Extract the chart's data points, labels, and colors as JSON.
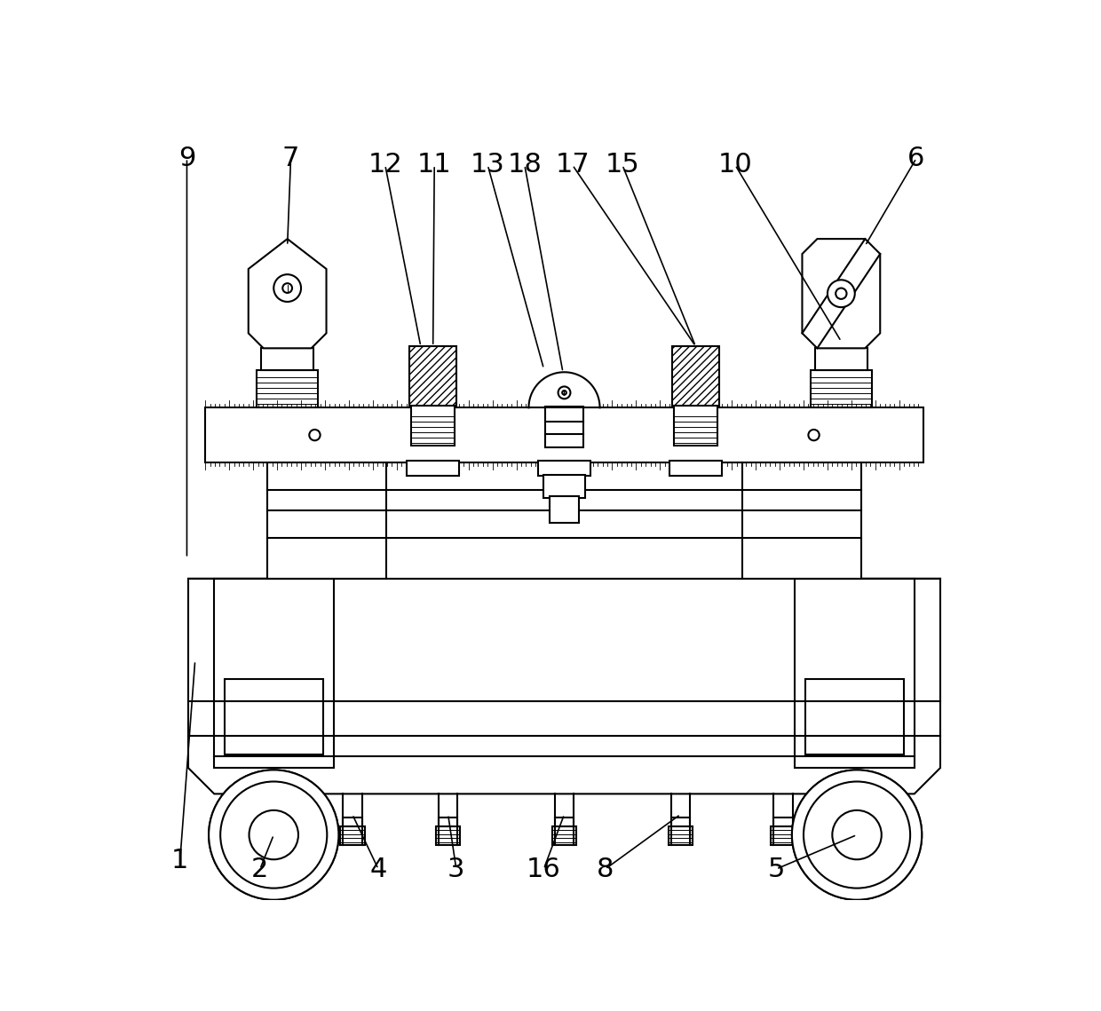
{
  "bg_color": "#ffffff",
  "line_color": "#000000",
  "lw": 1.5,
  "lw_thin": 0.7,
  "fig_w": 12.4,
  "fig_h": 11.39,
  "dpi": 100
}
